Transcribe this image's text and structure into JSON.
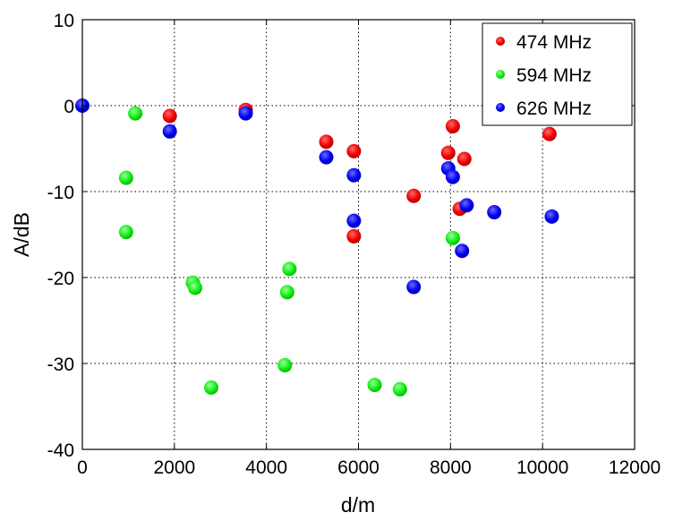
{
  "chart_data": {
    "type": "scatter",
    "xlabel": "d/m",
    "ylabel": "A/dB",
    "xlim": [
      0,
      12000
    ],
    "ylim": [
      -40,
      10
    ],
    "xticks": [
      "0",
      "2000",
      "4000",
      "6000",
      "8000",
      "10000",
      "12000"
    ],
    "yticks": [
      "10",
      "0",
      "-10",
      "-20",
      "-30",
      "-40"
    ],
    "grid": true,
    "legend_position": "top-right",
    "series": [
      {
        "name": "474 MHz",
        "color": "#ff0000",
        "points": [
          [
            1900,
            -1.2
          ],
          [
            3550,
            -0.5
          ],
          [
            5300,
            -4.2
          ],
          [
            5900,
            -5.3
          ],
          [
            5900,
            -15.2
          ],
          [
            7200,
            -10.5
          ],
          [
            7950,
            -5.5
          ],
          [
            8050,
            -2.4
          ],
          [
            8200,
            -12.0
          ],
          [
            8300,
            -6.2
          ],
          [
            10150,
            -3.3
          ]
        ]
      },
      {
        "name": "594 MHz",
        "color": "#00ff00",
        "points": [
          [
            1150,
            -0.9
          ],
          [
            950,
            -8.4
          ],
          [
            950,
            -14.7
          ],
          [
            2400,
            -20.6
          ],
          [
            2450,
            -21.2
          ],
          [
            2800,
            -32.8
          ],
          [
            4450,
            -21.7
          ],
          [
            4500,
            -19.0
          ],
          [
            4400,
            -30.2
          ],
          [
            6350,
            -32.5
          ],
          [
            6900,
            -33.0
          ],
          [
            8050,
            -15.4
          ]
        ]
      },
      {
        "name": "626 MHz",
        "color": "#0000ff",
        "points": [
          [
            0,
            0.0
          ],
          [
            1900,
            -3.0
          ],
          [
            3550,
            -0.9
          ],
          [
            5300,
            -6.0
          ],
          [
            5900,
            -8.1
          ],
          [
            5900,
            -13.4
          ],
          [
            7200,
            -21.1
          ],
          [
            7950,
            -7.3
          ],
          [
            8050,
            -8.3
          ],
          [
            8250,
            -16.9
          ],
          [
            8350,
            -11.6
          ],
          [
            8950,
            -12.4
          ],
          [
            10200,
            -12.9
          ]
        ]
      }
    ]
  }
}
